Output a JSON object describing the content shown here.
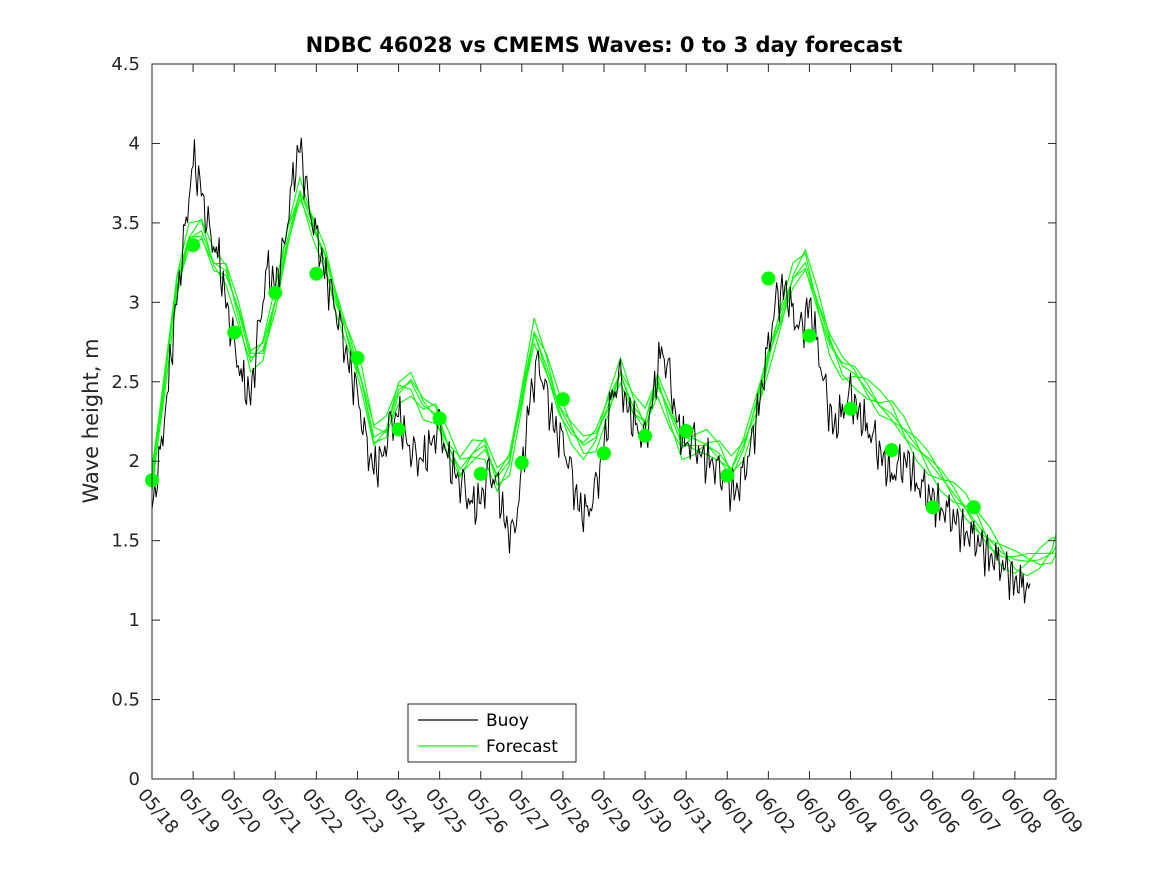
{
  "chart_data": {
    "type": "line",
    "title": "NDBC 46028 vs CMEMS Waves: 0 to 3 day forecast",
    "xlabel": "",
    "ylabel": "Wave height, m",
    "ylim": [
      0,
      4.5
    ],
    "yticks": [
      "0",
      "0.5",
      "1",
      "1.5",
      "2",
      "2.5",
      "3",
      "3.5",
      "4",
      "4.5"
    ],
    "xlim_days": [
      0,
      22
    ],
    "xticks": [
      "05/18",
      "05/19",
      "05/20",
      "05/21",
      "05/22",
      "05/23",
      "05/24",
      "05/25",
      "05/26",
      "05/27",
      "05/28",
      "05/29",
      "05/30",
      "05/31",
      "06/01",
      "06/02",
      "06/03",
      "06/04",
      "06/05",
      "06/06",
      "06/07",
      "06/08",
      "06/09"
    ],
    "grid": false,
    "legend": {
      "position": "bottom-center",
      "entries": [
        "Buoy",
        "Forecast"
      ]
    },
    "colors": {
      "buoy": "#000000",
      "forecast": "#00ff00"
    },
    "series": [
      {
        "name": "Buoy",
        "x": [
          0,
          0.2,
          0.4,
          0.6,
          0.8,
          1.0,
          1.2,
          1.4,
          1.6,
          1.8,
          2.0,
          2.2,
          2.4,
          2.6,
          2.8,
          3.0,
          3.2,
          3.4,
          3.6,
          3.8,
          4.0,
          4.2,
          4.4,
          4.6,
          4.8,
          5.0,
          5.2,
          5.4,
          5.6,
          5.8,
          6.0,
          6.2,
          6.4,
          6.6,
          6.8,
          7.0,
          7.2,
          7.4,
          7.6,
          7.8,
          8.0,
          8.2,
          8.4,
          8.6,
          8.8,
          9.0,
          9.2,
          9.4,
          9.6,
          9.8,
          10.0,
          10.2,
          10.4,
          10.6,
          10.8,
          11.0,
          11.2,
          11.4,
          11.6,
          11.8,
          12.0,
          12.2,
          12.4,
          12.6,
          12.8,
          13.0,
          13.2,
          13.4,
          13.6,
          13.8,
          14.0,
          14.2,
          14.4,
          14.6,
          14.8,
          15.0,
          15.2,
          15.4,
          15.6,
          15.8,
          16.0,
          16.2,
          16.4,
          16.6,
          16.8,
          17.0,
          17.2,
          17.4,
          17.6,
          17.8,
          18.0,
          18.2,
          18.4,
          18.6,
          18.8,
          19.0,
          19.2,
          19.4,
          19.6,
          19.8,
          20.0,
          20.2,
          20.4,
          20.6,
          20.8,
          21.0,
          21.2
        ],
        "values": [
          1.7,
          2.0,
          2.5,
          3.0,
          3.4,
          3.9,
          3.7,
          3.4,
          3.3,
          3.0,
          2.7,
          2.5,
          2.4,
          2.8,
          3.2,
          3.1,
          3.3,
          3.7,
          4.0,
          3.6,
          3.4,
          3.2,
          3.0,
          2.8,
          2.6,
          2.4,
          2.1,
          1.95,
          2.0,
          2.2,
          2.3,
          2.1,
          2.0,
          2.0,
          2.1,
          2.2,
          2.0,
          1.9,
          1.8,
          1.7,
          1.75,
          1.9,
          1.85,
          1.6,
          1.5,
          1.9,
          2.4,
          2.6,
          2.4,
          2.2,
          2.1,
          1.9,
          1.7,
          1.65,
          1.8,
          2.1,
          2.4,
          2.5,
          2.3,
          2.2,
          2.1,
          2.4,
          2.7,
          2.5,
          2.2,
          2.1,
          2.1,
          2.0,
          2.0,
          1.9,
          1.85,
          1.8,
          1.9,
          2.1,
          2.4,
          2.7,
          3.0,
          3.1,
          2.9,
          2.8,
          3.0,
          2.7,
          2.4,
          2.2,
          2.3,
          2.4,
          2.3,
          2.2,
          2.1,
          2.0,
          1.9,
          1.95,
          2.0,
          1.85,
          1.8,
          1.75,
          1.7,
          1.65,
          1.6,
          1.55,
          1.5,
          1.45,
          1.4,
          1.35,
          1.3,
          1.25,
          1.2
        ]
      },
      {
        "name": "Forecast",
        "x": [
          0,
          0.3,
          0.6,
          0.9,
          1.2,
          1.5,
          1.8,
          2.1,
          2.4,
          2.7,
          3.0,
          3.3,
          3.6,
          3.9,
          4.2,
          4.5,
          4.8,
          5.1,
          5.4,
          5.7,
          6.0,
          6.3,
          6.6,
          6.9,
          7.2,
          7.5,
          7.8,
          8.1,
          8.4,
          8.7,
          9.0,
          9.3,
          9.6,
          9.9,
          10.2,
          10.5,
          10.8,
          11.1,
          11.4,
          11.7,
          12.0,
          12.3,
          12.6,
          12.9,
          13.2,
          13.5,
          13.8,
          14.1,
          14.4,
          14.7,
          15.0,
          15.3,
          15.6,
          15.9,
          16.2,
          16.5,
          16.8,
          17.1,
          17.4,
          17.7,
          18.0,
          18.3,
          18.6,
          18.9,
          19.2,
          19.5,
          19.8,
          20.1,
          20.4,
          20.7,
          21.0,
          21.3,
          21.6,
          21.9,
          22.0
        ],
        "values": [
          1.9,
          2.5,
          3.1,
          3.4,
          3.45,
          3.25,
          3.2,
          2.95,
          2.65,
          2.7,
          3.0,
          3.4,
          3.7,
          3.5,
          3.3,
          3.0,
          2.75,
          2.5,
          2.15,
          2.2,
          2.45,
          2.5,
          2.35,
          2.3,
          2.1,
          1.95,
          2.05,
          2.1,
          1.9,
          2.0,
          2.4,
          2.8,
          2.6,
          2.35,
          2.2,
          2.1,
          2.15,
          2.35,
          2.55,
          2.35,
          2.25,
          2.5,
          2.3,
          2.1,
          2.1,
          2.1,
          2.05,
          1.95,
          2.1,
          2.35,
          2.65,
          2.9,
          3.15,
          3.25,
          3.0,
          2.75,
          2.6,
          2.55,
          2.45,
          2.35,
          2.3,
          2.2,
          2.1,
          2.0,
          1.9,
          1.8,
          1.7,
          1.6,
          1.5,
          1.42,
          1.38,
          1.37,
          1.38,
          1.42,
          1.46
        ]
      }
    ],
    "forecast_init_points": {
      "x": [
        0,
        1,
        2,
        3,
        4,
        5,
        6,
        7,
        8,
        9,
        10,
        11,
        12,
        13,
        14,
        15,
        16,
        17,
        18,
        19,
        20
      ],
      "values": [
        1.88,
        3.36,
        2.81,
        3.06,
        3.18,
        2.65,
        2.2,
        2.27,
        1.92,
        1.99,
        2.39,
        2.05,
        2.16,
        2.19,
        1.91,
        3.15,
        2.79,
        2.33,
        2.07,
        1.71,
        1.71
      ]
    }
  }
}
